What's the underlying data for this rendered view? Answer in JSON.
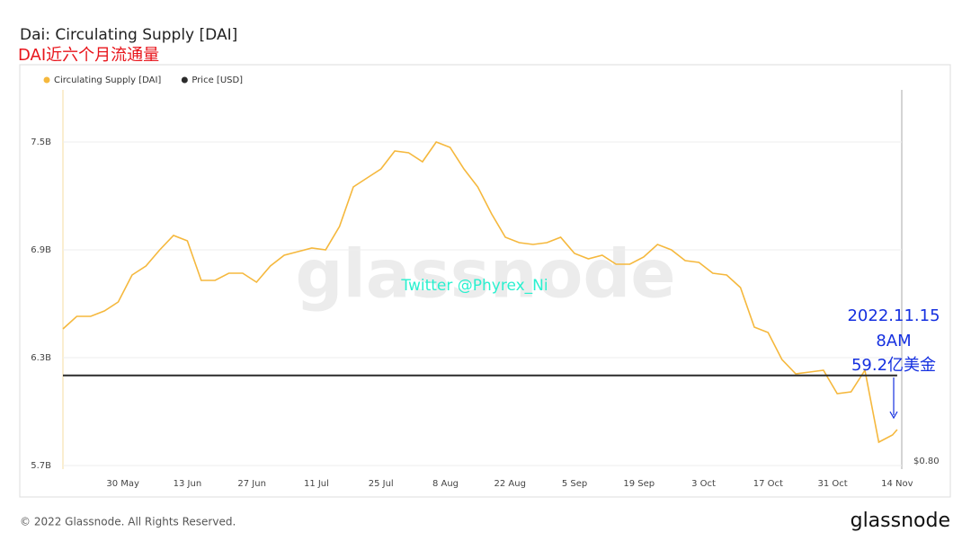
{
  "chart_data": {
    "type": "line",
    "title": "Dai: Circulating Supply [DAI]",
    "subtitle": "DAI近六个月流通量",
    "x": [
      "17 May",
      "20 May",
      "23 May",
      "26 May",
      "29 May",
      "1 Jun",
      "4 Jun",
      "7 Jun",
      "10 Jun",
      "13 Jun",
      "16 Jun",
      "19 Jun",
      "22 Jun",
      "25 Jun",
      "28 Jun",
      "1 Jul",
      "4 Jul",
      "7 Jul",
      "10 Jul",
      "13 Jul",
      "16 Jul",
      "19 Jul",
      "22 Jul",
      "25 Jul",
      "28 Jul",
      "31 Jul",
      "3 Aug",
      "6 Aug",
      "9 Aug",
      "12 Aug",
      "15 Aug",
      "18 Aug",
      "21 Aug",
      "24 Aug",
      "27 Aug",
      "30 Aug",
      "2 Sep",
      "5 Sep",
      "8 Sep",
      "11 Sep",
      "14 Sep",
      "17 Sep",
      "20 Sep",
      "23 Sep",
      "26 Sep",
      "29 Sep",
      "2 Oct",
      "5 Oct",
      "8 Oct",
      "11 Oct",
      "14 Oct",
      "17 Oct",
      "20 Oct",
      "23 Oct",
      "26 Oct",
      "29 Oct",
      "1 Nov",
      "4 Nov",
      "7 Nov",
      "10 Nov",
      "13 Nov",
      "14 Nov"
    ],
    "series": [
      {
        "name": "Circulating Supply [DAI]",
        "color": "#f5b83d",
        "values": [
          6.46,
          6.53,
          6.53,
          6.56,
          6.61,
          6.76,
          6.81,
          6.9,
          6.98,
          6.95,
          6.73,
          6.73,
          6.77,
          6.77,
          6.72,
          6.81,
          6.87,
          6.89,
          6.91,
          6.9,
          7.03,
          7.25,
          7.3,
          7.35,
          7.45,
          7.44,
          7.39,
          7.5,
          7.47,
          7.35,
          7.25,
          7.1,
          6.97,
          6.94,
          6.93,
          6.94,
          6.97,
          6.88,
          6.85,
          6.87,
          6.82,
          6.82,
          6.86,
          6.93,
          6.9,
          6.84,
          6.83,
          6.77,
          6.76,
          6.69,
          6.47,
          6.44,
          6.29,
          6.21,
          6.22,
          6.23,
          6.1,
          6.11,
          6.23,
          5.83,
          5.87,
          5.9
        ]
      },
      {
        "name": "Price [USD]",
        "color": "#2b2b2b",
        "axis": "y2",
        "values": [
          1.0,
          1.0,
          1.0,
          1.0,
          1.0,
          1.0,
          1.0,
          1.0,
          1.0,
          1.0,
          1.0,
          1.0,
          1.0,
          1.0,
          1.0,
          1.0,
          1.0,
          1.0,
          1.0,
          1.0,
          1.0,
          1.0,
          1.0,
          1.0,
          1.0,
          1.0,
          1.0,
          1.0,
          1.0,
          1.0,
          1.0,
          1.0,
          1.0,
          1.0,
          1.0,
          1.0,
          1.0,
          1.0,
          1.0,
          1.0,
          1.0,
          1.0,
          1.0,
          1.0,
          1.0,
          1.0,
          1.0,
          1.0,
          1.0,
          1.0,
          1.0,
          1.0,
          1.0,
          1.0,
          1.0,
          1.0,
          1.0,
          1.0,
          1.0,
          1.0,
          1.0,
          1.0
        ]
      }
    ],
    "xlim": [
      "17 May",
      "15 Nov"
    ],
    "xticks": [
      "30 May",
      "13 Jun",
      "27 Jun",
      "11 Jul",
      "25 Jul",
      "8 Aug",
      "22 Aug",
      "5 Sep",
      "19 Sep",
      "3 Oct",
      "17 Oct",
      "31 Oct",
      "14 Nov"
    ],
    "ylim": [
      5.68,
      7.79
    ],
    "yticks": [
      {
        "value": 5.7,
        "label": "5.7B"
      },
      {
        "value": 6.3,
        "label": "6.3B"
      },
      {
        "value": 6.9,
        "label": "6.9B"
      },
      {
        "value": 7.5,
        "label": "7.5B"
      }
    ],
    "y2lim": [
      0.79,
      1.64
    ],
    "y2ticks": [
      {
        "value": 0.8,
        "label": "$0.80"
      }
    ],
    "grid": true,
    "legend": "top-left",
    "watermark": "glassnode",
    "annotations": [
      "Twitter @Phyrex_Ni",
      "2022.11.15",
      "8AM",
      "59.2亿美金"
    ]
  },
  "footer": {
    "copyright": "© 2022 Glassnode. All Rights Reserved.",
    "logo": "glassnode"
  }
}
